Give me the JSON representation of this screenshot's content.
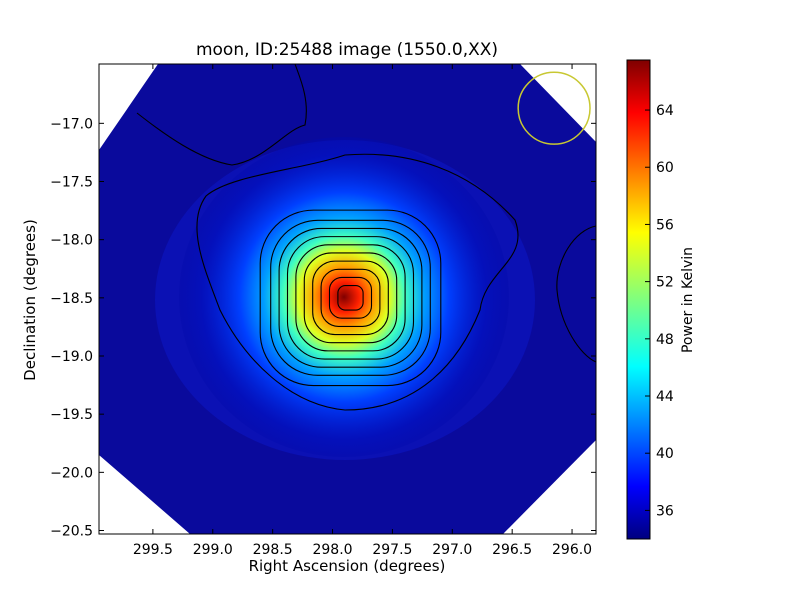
{
  "chart_data": {
    "type": "heatmap",
    "title": "moon, ID:25488 image (1550.0,XX)",
    "xlabel": "Right Ascension (degrees)",
    "ylabel": "Declination (degrees)",
    "xlim": [
      299.95,
      295.8
    ],
    "ylim": [
      -20.53,
      -16.49
    ],
    "x_axis_inverted": true,
    "x_ticks": [
      299.5,
      299.0,
      298.5,
      298.0,
      297.5,
      297.0,
      296.5,
      296.0
    ],
    "x_tick_labels": [
      "299.5",
      "299.0",
      "298.5",
      "298.0",
      "297.5",
      "297.0",
      "296.5",
      "296.0"
    ],
    "y_ticks": [
      -17.0,
      -17.5,
      -18.0,
      -18.5,
      -19.0,
      -19.5,
      -20.0,
      -20.5
    ],
    "y_tick_labels": [
      "−17.0",
      "−17.5",
      "−18.0",
      "−18.5",
      "−19.0",
      "−19.5",
      "−20.0",
      "−20.5"
    ],
    "grid": false,
    "colormap": "jet",
    "colorbar": {
      "label": "Power in Kelvin",
      "range": [
        34,
        67.5
      ],
      "ticks": [
        36,
        40,
        44,
        48,
        52,
        56,
        60,
        64
      ],
      "tick_labels": [
        "36",
        "40",
        "44",
        "48",
        "52",
        "56",
        "60",
        "64"
      ]
    },
    "source": {
      "ra": 297.85,
      "dec": -18.5,
      "peak_kelvin": 67.5
    },
    "background_kelvin": 35,
    "contour_levels": [
      36,
      38,
      40,
      42,
      44,
      46,
      48,
      50,
      52,
      54,
      56,
      58,
      60,
      62,
      64,
      66
    ],
    "beam_marker": {
      "ra": 296.15,
      "dec": -16.87,
      "radius_deg": 0.3,
      "color": "#c8c832"
    },
    "masked_corners": "white octagon corners outside data footprint"
  }
}
